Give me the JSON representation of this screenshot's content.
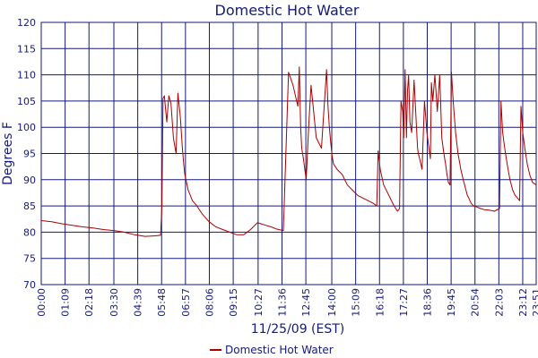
{
  "chart_data": {
    "type": "line",
    "title": "Domestic Hot Water",
    "xlabel": "11/25/09 (EST)",
    "ylabel": "Degrees F",
    "ylim": [
      70,
      120
    ],
    "y_ticks": [
      "70",
      "75",
      "80",
      "85",
      "90",
      "95",
      "100",
      "105",
      "110",
      "115",
      "120"
    ],
    "x_ticks": [
      "00:00",
      "01:09",
      "02:18",
      "03:30",
      "04:39",
      "05:48",
      "06:57",
      "08:06",
      "09:15",
      "10:27",
      "11:36",
      "12:45",
      "14:00",
      "15:09",
      "16:18",
      "17:27",
      "18:36",
      "19:45",
      "20:54",
      "22:03",
      "23:12",
      "23:51"
    ],
    "grid": true,
    "legend_position": "bottom",
    "colors": {
      "series": "#aa0000",
      "grid": "#141a7a",
      "text": "#141a7a"
    },
    "series": [
      {
        "name": "Domestic Hot Water",
        "x": [
          "00:00",
          "00:30",
          "01:00",
          "01:30",
          "02:00",
          "02:30",
          "03:00",
          "03:30",
          "04:00",
          "04:30",
          "05:00",
          "05:30",
          "05:45",
          "05:49",
          "05:52",
          "05:56",
          "06:03",
          "06:09",
          "06:15",
          "06:22",
          "06:27",
          "06:30",
          "06:35",
          "06:42",
          "06:48",
          "06:52",
          "06:55",
          "07:05",
          "07:17",
          "07:30",
          "07:45",
          "08:05",
          "08:25",
          "08:45",
          "09:05",
          "09:25",
          "09:45",
          "10:05",
          "10:25",
          "10:35",
          "10:50",
          "11:05",
          "11:20",
          "11:40",
          "11:55",
          "12:08",
          "12:22",
          "12:26",
          "12:30",
          "12:33",
          "12:38",
          "12:42",
          "12:46",
          "12:53",
          "13:00",
          "13:15",
          "13:30",
          "13:45",
          "13:49",
          "13:53",
          "13:57",
          "14:01",
          "14:05",
          "14:15",
          "14:30",
          "14:45",
          "15:00",
          "15:15",
          "15:30",
          "15:45",
          "16:00",
          "16:10",
          "16:14",
          "16:20",
          "16:30",
          "16:45",
          "17:00",
          "17:10",
          "17:16",
          "17:20",
          "17:25",
          "17:28",
          "17:32",
          "17:36",
          "17:39",
          "17:42",
          "17:46",
          "17:51",
          "17:58",
          "18:05",
          "18:08",
          "18:10",
          "18:14",
          "18:21",
          "18:28",
          "18:35",
          "18:41",
          "18:45",
          "18:48",
          "18:52",
          "18:58",
          "19:05",
          "19:12",
          "19:18",
          "19:24",
          "19:29",
          "19:33",
          "19:37",
          "19:42",
          "19:46",
          "19:51",
          "19:58",
          "20:05",
          "20:13",
          "20:20",
          "20:28",
          "20:32",
          "20:36",
          "20:43",
          "20:50",
          "21:00",
          "21:10",
          "21:20",
          "21:35",
          "21:50",
          "22:05",
          "22:09",
          "22:14",
          "22:20",
          "22:27",
          "22:35",
          "22:43",
          "22:50",
          "22:57",
          "23:03",
          "23:07",
          "23:12",
          "23:18",
          "23:25",
          "23:32",
          "23:40",
          "23:51"
        ],
        "values": [
          82.2,
          82.0,
          81.6,
          81.3,
          81.0,
          80.8,
          80.5,
          80.3,
          80.0,
          79.5,
          79.2,
          79.3,
          79.4,
          85.0,
          105.5,
          106.0,
          101.0,
          106.0,
          104.5,
          98.0,
          96.0,
          95.0,
          106.5,
          102.0,
          96.0,
          93.0,
          91.0,
          88.0,
          86.0,
          85.0,
          83.5,
          82.0,
          81.0,
          80.5,
          80.0,
          79.5,
          79.5,
          80.5,
          81.8,
          81.6,
          81.3,
          81.0,
          80.6,
          80.3,
          110.5,
          108.0,
          104.0,
          111.5,
          100.0,
          96.0,
          94.0,
          92.0,
          90.0,
          100.0,
          108.0,
          98.0,
          96.0,
          111.0,
          104.0,
          100.0,
          97.0,
          94.5,
          93.0,
          92.0,
          91.0,
          89.0,
          88.0,
          87.0,
          86.5,
          86.0,
          85.5,
          85.0,
          95.5,
          92.0,
          89.0,
          87.0,
          85.0,
          84.0,
          84.5,
          105.0,
          103.0,
          98.0,
          111.0,
          98.0,
          107.0,
          110.0,
          101.0,
          99.0,
          109.0,
          100.0,
          96.0,
          95.0,
          94.0,
          92.0,
          105.0,
          99.0,
          96.0,
          94.0,
          108.5,
          105.0,
          110.0,
          103.0,
          110.0,
          98.0,
          95.0,
          93.0,
          91.0,
          89.5,
          89.0,
          110.5,
          105.0,
          99.0,
          95.0,
          92.0,
          90.0,
          88.0,
          87.0,
          86.5,
          85.5,
          85.0,
          84.8,
          84.5,
          84.3,
          84.2,
          84.0,
          84.5,
          105.0,
          99.0,
          96.0,
          93.0,
          90.0,
          88.0,
          87.0,
          86.5,
          86.0,
          104.0,
          99.0,
          96.0,
          93.0,
          91.0,
          89.5,
          89.0
        ]
      }
    ]
  }
}
